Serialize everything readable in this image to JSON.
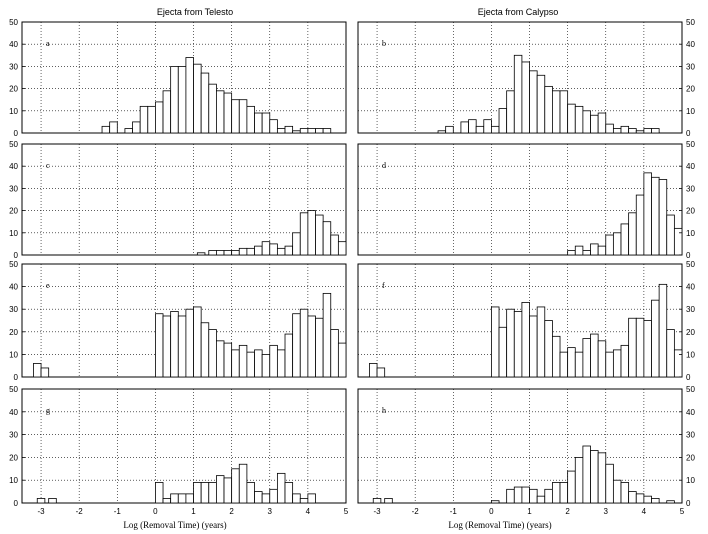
{
  "figure": {
    "xlabel": "Log (Removal Time) (years)",
    "columns": [
      {
        "title": "Ejecta from Telesto"
      },
      {
        "title": "Ejecta from Calypso"
      }
    ]
  },
  "chart_data": [
    {
      "type": "bar",
      "label": "a",
      "xlim": [
        -3.5,
        5
      ],
      "ylim": [
        0,
        50
      ],
      "grid": true,
      "x": [
        -1.4,
        -1.2,
        -0.8,
        -0.6,
        -0.4,
        -0.2,
        0.0,
        0.2,
        0.4,
        0.6,
        0.8,
        1.0,
        1.2,
        1.4,
        1.6,
        1.8,
        2.0,
        2.2,
        2.4,
        2.6,
        2.8,
        3.0,
        3.2,
        3.4,
        3.6,
        3.8,
        4.0,
        4.2,
        4.4
      ],
      "values": [
        3,
        5,
        2,
        5,
        12,
        12,
        14,
        19,
        30,
        30,
        34,
        31,
        27,
        22,
        19,
        18,
        15,
        15,
        12,
        9,
        9,
        6,
        2,
        3,
        1,
        2,
        2,
        2,
        2
      ]
    },
    {
      "type": "bar",
      "label": "b",
      "xlim": [
        -3.5,
        5
      ],
      "ylim": [
        0,
        50
      ],
      "grid": true,
      "x": [
        -1.4,
        -1.2,
        -0.8,
        -0.6,
        -0.4,
        -0.2,
        0.0,
        0.2,
        0.4,
        0.6,
        0.8,
        1.0,
        1.2,
        1.4,
        1.6,
        1.8,
        2.0,
        2.2,
        2.4,
        2.6,
        2.8,
        3.0,
        3.2,
        3.4,
        3.6,
        3.8,
        4.0,
        4.2,
        4.4
      ],
      "values": [
        1,
        3,
        5,
        6,
        3,
        6,
        3,
        11,
        19,
        35,
        32,
        28,
        26,
        21,
        19,
        19,
        13,
        12,
        10,
        8,
        9,
        4,
        2,
        3,
        2,
        1,
        2,
        2,
        0
      ]
    },
    {
      "type": "bar",
      "label": "c",
      "xlim": [
        -3.5,
        5
      ],
      "ylim": [
        0,
        50
      ],
      "grid": true,
      "x": [
        1.1,
        1.4,
        1.6,
        1.8,
        2.0,
        2.2,
        2.4,
        2.6,
        2.8,
        3.0,
        3.2,
        3.4,
        3.6,
        3.8,
        4.0,
        4.2,
        4.4,
        4.6,
        4.8
      ],
      "values": [
        1,
        2,
        2,
        2,
        2,
        3,
        3,
        4,
        6,
        5,
        3,
        4,
        10,
        19,
        20,
        18,
        15,
        9,
        6
      ]
    },
    {
      "type": "bar",
      "label": "d",
      "xlim": [
        -3.5,
        5
      ],
      "ylim": [
        0,
        50
      ],
      "grid": true,
      "x": [
        2.0,
        2.2,
        2.4,
        2.6,
        2.8,
        3.0,
        3.2,
        3.4,
        3.6,
        3.8,
        4.0,
        4.2,
        4.4,
        4.6,
        4.8
      ],
      "values": [
        2,
        4,
        2,
        5,
        4,
        9,
        10,
        14,
        19,
        27,
        37,
        35,
        34,
        18,
        12
      ]
    },
    {
      "type": "bar",
      "label": "e",
      "xlim": [
        -3.5,
        5
      ],
      "ylim": [
        0,
        50
      ],
      "grid": true,
      "x": [
        -3.2,
        -3.0,
        0.0,
        0.2,
        0.4,
        0.6,
        0.8,
        1.0,
        1.2,
        1.4,
        1.6,
        1.8,
        2.0,
        2.2,
        2.4,
        2.6,
        2.8,
        3.0,
        3.2,
        3.4,
        3.6,
        3.8,
        4.0,
        4.2,
        4.4,
        4.6,
        4.8
      ],
      "values": [
        6,
        4,
        28,
        27,
        29,
        27,
        30,
        31,
        24,
        21,
        16,
        15,
        12,
        14,
        11,
        12,
        10,
        14,
        12,
        19,
        28,
        30,
        27,
        26,
        37,
        21,
        15
      ]
    },
    {
      "type": "bar",
      "label": "f",
      "xlim": [
        -3.5,
        5
      ],
      "ylim": [
        0,
        50
      ],
      "grid": true,
      "x": [
        -3.2,
        -3.0,
        0.0,
        0.2,
        0.4,
        0.6,
        0.8,
        1.0,
        1.2,
        1.4,
        1.6,
        1.8,
        2.0,
        2.2,
        2.4,
        2.6,
        2.8,
        3.0,
        3.2,
        3.4,
        3.6,
        3.8,
        4.0,
        4.2,
        4.4,
        4.6,
        4.8
      ],
      "values": [
        6,
        4,
        31,
        22,
        30,
        29,
        33,
        27,
        31,
        25,
        18,
        11,
        13,
        11,
        17,
        19,
        16,
        11,
        12,
        14,
        26,
        26,
        25,
        34,
        41,
        21,
        12
      ]
    },
    {
      "type": "bar",
      "label": "g",
      "xlim": [
        -3.5,
        5
      ],
      "ylim": [
        0,
        50
      ],
      "grid": true,
      "x": [
        -3.1,
        -2.8,
        0.0,
        0.2,
        0.4,
        0.6,
        0.8,
        1.0,
        1.2,
        1.4,
        1.6,
        1.8,
        2.0,
        2.2,
        2.4,
        2.6,
        2.8,
        3.0,
        3.2,
        3.4,
        3.6,
        3.8,
        4.0
      ],
      "values": [
        2,
        2,
        9,
        2,
        4,
        4,
        4,
        9,
        9,
        9,
        12,
        11,
        15,
        17,
        9,
        5,
        4,
        6,
        13,
        9,
        4,
        2,
        4
      ]
    },
    {
      "type": "bar",
      "label": "h",
      "xlim": [
        -3.5,
        5
      ],
      "ylim": [
        0,
        50
      ],
      "grid": true,
      "x": [
        -3.1,
        -2.8,
        0.0,
        0.4,
        0.6,
        0.8,
        1.0,
        1.2,
        1.4,
        1.6,
        1.8,
        2.0,
        2.2,
        2.4,
        2.6,
        2.8,
        3.0,
        3.2,
        3.4,
        3.6,
        3.8,
        4.0,
        4.2,
        4.6
      ],
      "values": [
        2,
        2,
        1,
        6,
        7,
        7,
        6,
        3,
        6,
        9,
        9,
        14,
        20,
        25,
        23,
        22,
        17,
        10,
        9,
        5,
        4,
        3,
        2,
        1
      ]
    }
  ]
}
